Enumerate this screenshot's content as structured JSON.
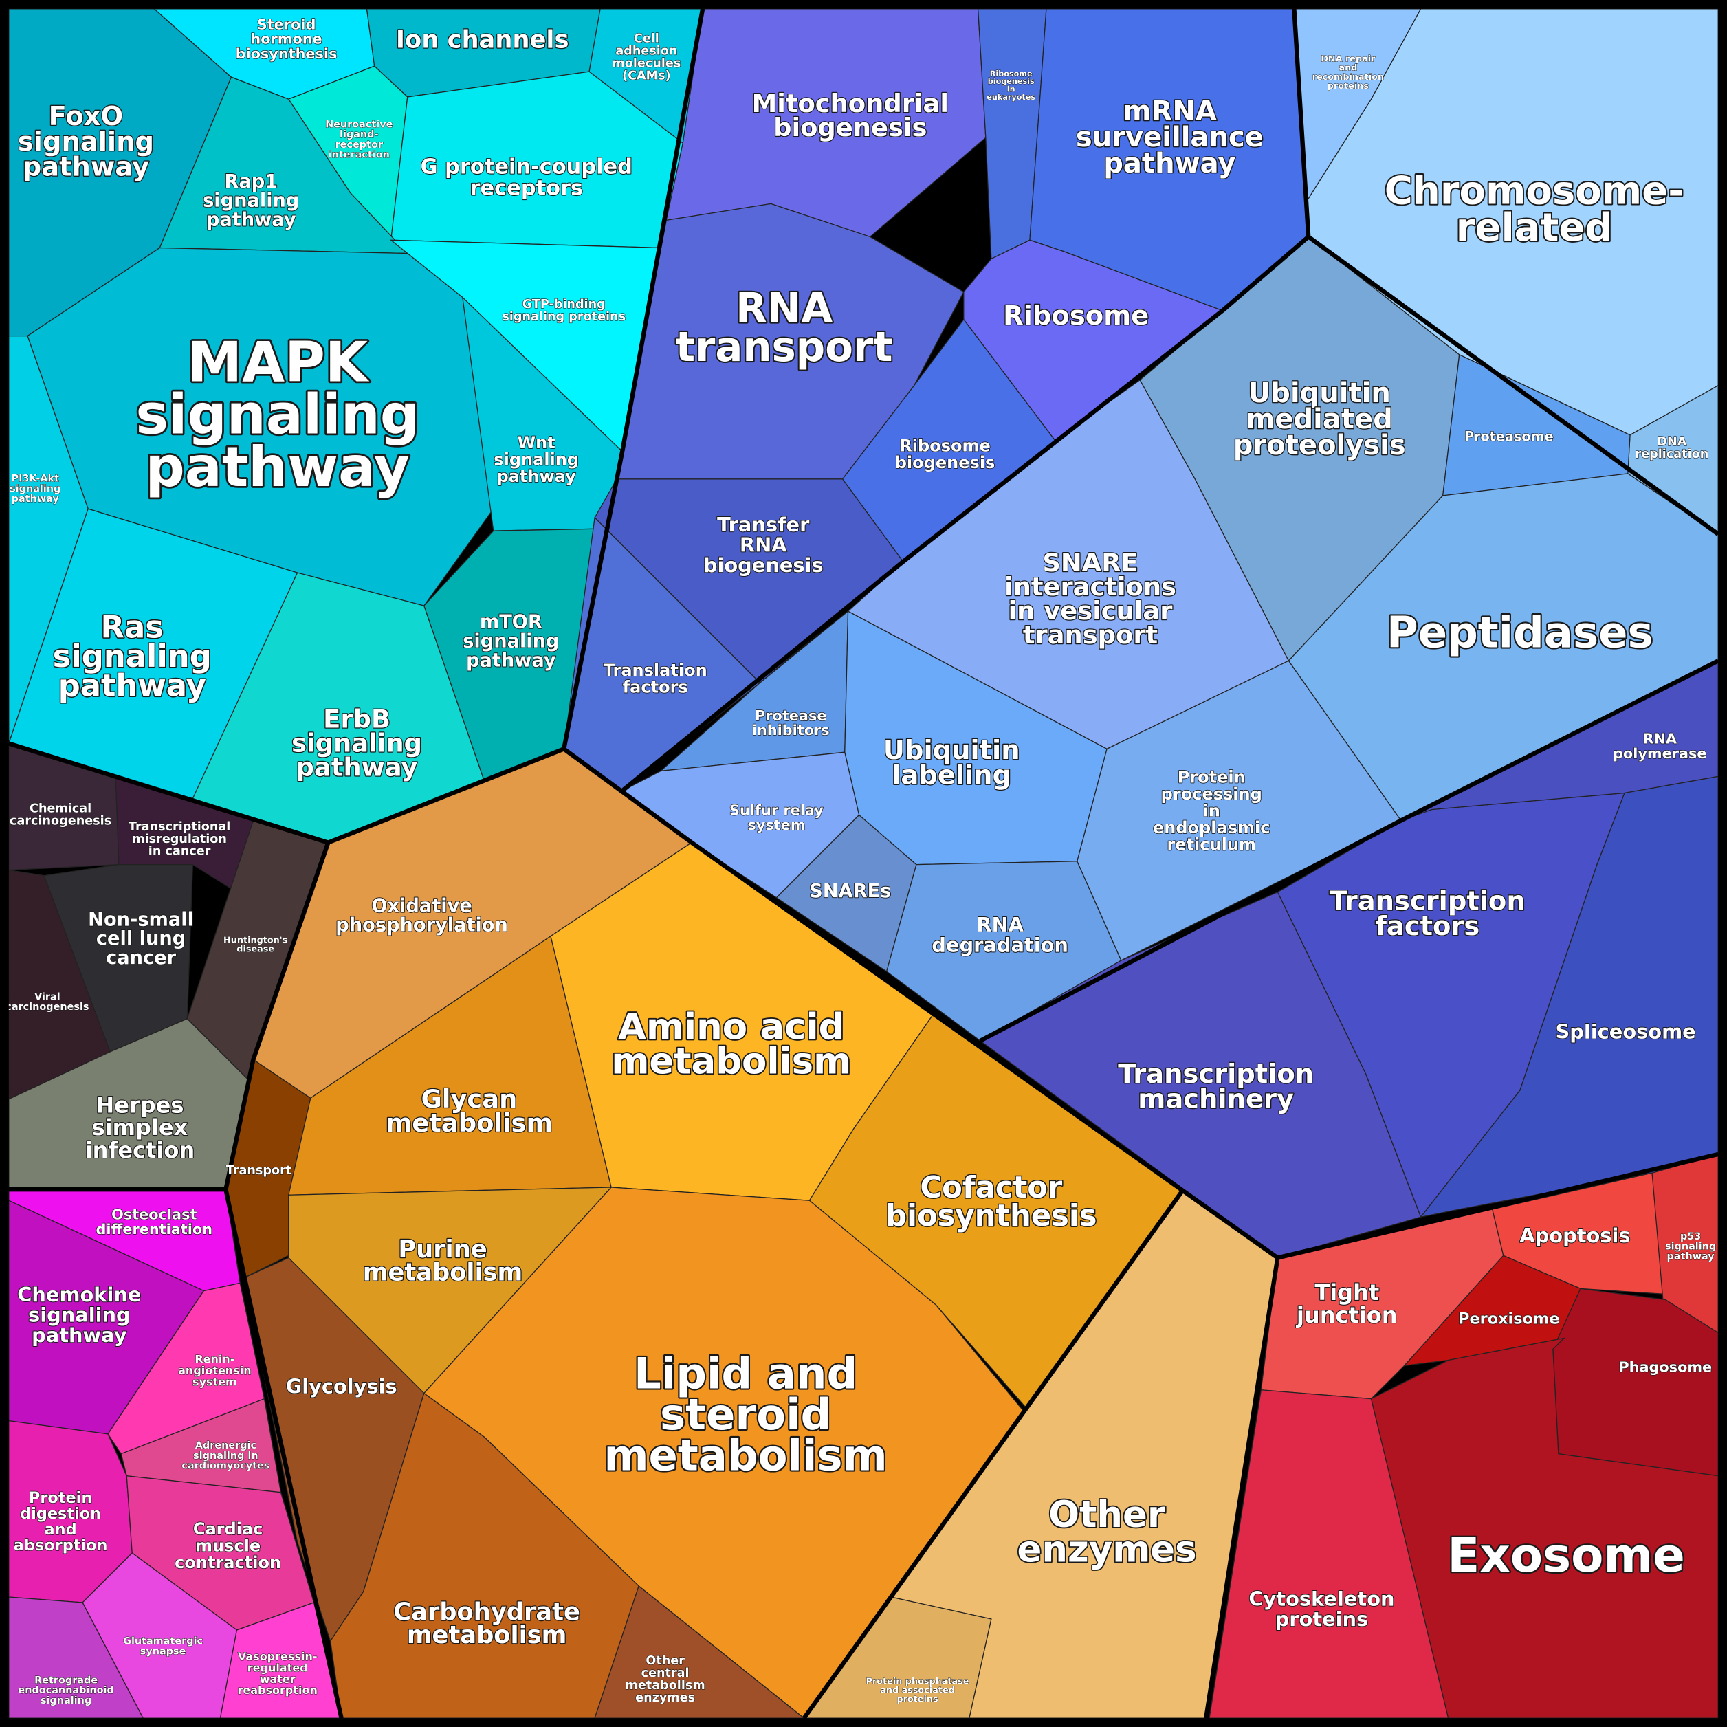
{
  "cells": [
    {
      "label": [
        "FoxO",
        "signaling",
        "pathway"
      ]
    },
    {
      "label": [
        "Steroid",
        "hormone",
        "biosynthesis"
      ]
    },
    {
      "label": [
        "Ion channels"
      ]
    },
    {
      "label": [
        "Cell",
        "adhesion",
        "molecules",
        "(CAMs)"
      ]
    },
    {
      "label": [
        "Neuroactive",
        "ligand-",
        "receptor",
        "interaction"
      ]
    },
    {
      "label": [
        "G protein-coupled",
        "receptors"
      ]
    },
    {
      "label": [
        "Rap1",
        "signaling",
        "pathway"
      ]
    },
    {
      "label": [
        "GTP-binding",
        "signaling proteins"
      ]
    },
    {
      "label": [
        "MAPK",
        "signaling",
        "pathway"
      ]
    },
    {
      "label": [
        "PI3K-Akt",
        "signaling",
        "pathway"
      ]
    },
    {
      "label": [
        "Wnt",
        "signaling",
        "pathway"
      ]
    },
    {
      "label": [
        "Ras",
        "signaling",
        "pathway"
      ]
    },
    {
      "label": [
        "ErbB",
        "signaling",
        "pathway"
      ]
    },
    {
      "label": [
        "mTOR",
        "signaling",
        "pathway"
      ]
    },
    {
      "label": [
        "Chemical",
        "carcinogenesis"
      ]
    },
    {
      "label": [
        "Transcriptional",
        "misregulation",
        "in cancer"
      ]
    },
    {
      "label": [
        "Non-small",
        "cell lung",
        "cancer"
      ]
    },
    {
      "label": [
        "Viral",
        "carcinogenesis"
      ]
    },
    {
      "label": [
        "Huntington's",
        "disease"
      ]
    },
    {
      "label": [
        "Herpes",
        "simplex",
        "infection"
      ]
    },
    {
      "label": [
        "Osteoclast",
        "differentiation"
      ]
    },
    {
      "label": [
        "Chemokine",
        "signaling",
        "pathway"
      ]
    },
    {
      "label": [
        "Renin-",
        "angiotensin",
        "system"
      ]
    },
    {
      "label": [
        "Adrenergic",
        "signaling in",
        "cardiomyocytes"
      ]
    },
    {
      "label": [
        "Protein",
        "digestion",
        "and",
        "absorption"
      ]
    },
    {
      "label": [
        "Cardiac",
        "muscle",
        "contraction"
      ]
    },
    {
      "label": [
        "Retrograde",
        "endocannabinoid",
        "signaling"
      ]
    },
    {
      "label": [
        "Glutamatergic",
        "synapse"
      ]
    },
    {
      "label": [
        "Vasopressin-",
        "regulated",
        "water",
        "reabsorption"
      ]
    },
    {
      "label": [
        "Transport"
      ]
    },
    {
      "label": [
        "Oxidative",
        "phosphorylation"
      ]
    },
    {
      "label": [
        "Glycan",
        "metabolism"
      ]
    },
    {
      "label": [
        "Amino acid",
        "metabolism"
      ]
    },
    {
      "label": [
        "Cofactor",
        "biosynthesis"
      ]
    },
    {
      "label": [
        "Purine",
        "metabolism"
      ]
    },
    {
      "label": [
        "Lipid and",
        "steroid",
        "metabolism"
      ]
    },
    {
      "label": [
        "Glycolysis"
      ]
    },
    {
      "label": [
        "Carbohydrate",
        "metabolism"
      ]
    },
    {
      "label": [
        "Other",
        "central",
        "metabolism",
        "enzymes"
      ]
    },
    {
      "label": [
        "Other",
        "enzymes"
      ]
    },
    {
      "label": [
        "Protein phosphatase",
        "and associated",
        "proteins"
      ]
    },
    {
      "label": [
        "Tight",
        "junction"
      ]
    },
    {
      "label": [
        "Apoptosis"
      ]
    },
    {
      "label": [
        "p53",
        "signaling",
        "pathway"
      ]
    },
    {
      "label": [
        "Peroxisome"
      ]
    },
    {
      "label": [
        "Phagosome"
      ]
    },
    {
      "label": [
        "Cytoskeleton",
        "proteins"
      ]
    },
    {
      "label": [
        "Exosome"
      ]
    },
    {
      "label": [
        "Mitochondrial",
        "biogenesis"
      ]
    },
    {
      "label": [
        "Ribosome",
        "biogenesis",
        "in",
        "eukaryotes"
      ]
    },
    {
      "label": [
        "mRNA",
        "surveillance",
        "pathway"
      ]
    },
    {
      "label": [
        "RNA",
        "transport"
      ]
    },
    {
      "label": [
        "Ribosome"
      ]
    },
    {
      "label": [
        "Ribosome",
        "biogenesis"
      ]
    },
    {
      "label": [
        "Transfer",
        "RNA",
        "biogenesis"
      ]
    },
    {
      "label": [
        "Translation",
        "factors"
      ]
    },
    {
      "label": [
        "Chromosome-",
        "related"
      ]
    },
    {
      "label": [
        "DNA repair",
        "and",
        "recombination",
        "proteins"
      ]
    },
    {
      "label": [
        "DNA",
        "replication"
      ]
    },
    {
      "label": [
        "Ubiquitin",
        "mediated",
        "proteolysis"
      ]
    },
    {
      "label": [
        "Proteasome"
      ]
    },
    {
      "label": [
        "Peptidases"
      ]
    },
    {
      "label": [
        "SNARE",
        "interactions",
        "in vesicular",
        "transport"
      ]
    },
    {
      "label": [
        "Protease",
        "inhibitors"
      ]
    },
    {
      "label": [
        "Ubiquitin",
        "labeling"
      ]
    },
    {
      "label": [
        "Sulfur relay",
        "system"
      ]
    },
    {
      "label": [
        "SNAREs"
      ]
    },
    {
      "label": [
        "RNA",
        "degradation"
      ]
    },
    {
      "label": [
        "Protein",
        "processing",
        "in",
        "endoplasmic",
        "reticulum"
      ]
    },
    {
      "label": [
        "Transcription",
        "factors"
      ]
    },
    {
      "label": [
        "RNA",
        "polymerase"
      ]
    },
    {
      "label": [
        "Spliceosome"
      ]
    },
    {
      "label": [
        "Transcription",
        "machinery"
      ]
    }
  ]
}
